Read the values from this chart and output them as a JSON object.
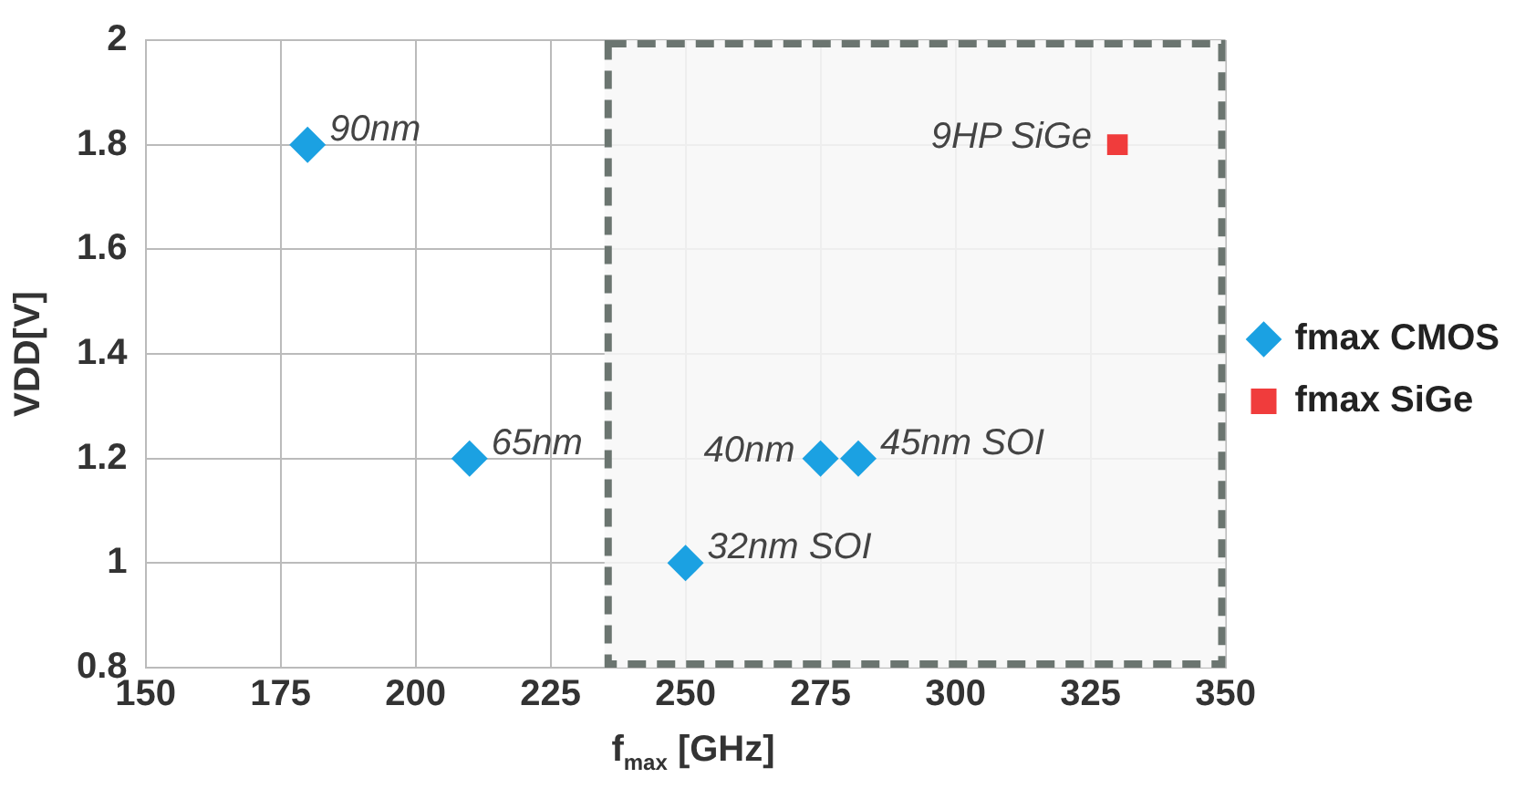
{
  "chart_data": {
    "type": "scatter",
    "xlabel": "f$_{max}$ [GHz]",
    "ylabel": "VDD[V]",
    "xlim": [
      150,
      350
    ],
    "xticks": [
      150,
      175,
      200,
      225,
      250,
      275,
      300,
      325,
      350
    ],
    "ylim": [
      0.8,
      2
    ],
    "yticks": [
      0.8,
      1,
      1.2,
      1.4,
      1.6,
      1.8,
      2
    ],
    "grid": true,
    "legend": "right",
    "series": [
      {
        "name": "fmax CMOS",
        "color": "#1ba1e2",
        "marker": "diamond",
        "x": [
          180,
          210,
          250,
          275,
          282
        ],
        "values": [
          1.8,
          1.2,
          1.0,
          1.2,
          1.2
        ]
      },
      {
        "name": "fmax SiGe",
        "color": "#f03c3c",
        "marker": "square",
        "x": [
          330
        ],
        "values": [
          1.8
        ]
      }
    ],
    "bands": [
      {
        "axis": "x",
        "from": 235,
        "to": 350,
        "color": "#f7f7f7"
      }
    ],
    "annotations": [
      {
        "text": "90nm",
        "x": 180,
        "y": 1.8
      },
      {
        "text": "65nm",
        "x": 210,
        "y": 1.2
      },
      {
        "text": "32nm SOI",
        "x": 250,
        "y": 1.0
      },
      {
        "text": "40nm",
        "x": 275,
        "y": 1.2
      },
      {
        "text": "45nm SOI",
        "x": 282,
        "y": 1.2
      },
      {
        "text": "9HP SiGe",
        "x": 330,
        "y": 1.8
      }
    ]
  }
}
